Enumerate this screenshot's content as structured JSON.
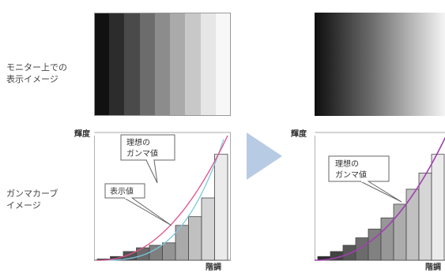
{
  "left": {
    "monitor_label_1": "モニター上での",
    "monitor_label_2": "表示イメージ",
    "y_axis_label": "輝度",
    "curve_label_1": "ガンマカーブ",
    "curve_label_2": "イメージ",
    "ideal_label_1": "理想の",
    "ideal_label_2": "ガンマ値",
    "display_label": "表示値",
    "x_axis_label": "階調",
    "bands": [
      "#111111",
      "#2c2c2c",
      "#4a4a4a",
      "#6c6c6c",
      "#8c8c8c",
      "#aaaaaa",
      "#c8c8c8",
      "#e6e6e6",
      "#f7f7f7"
    ],
    "bars": [
      0.01,
      0.03,
      0.07,
      0.1,
      0.12,
      0.14,
      0.28,
      0.35,
      0.5,
      0.85
    ]
  },
  "right": {
    "y_axis_label": "輝度",
    "ideal_label_1": "理想の",
    "ideal_label_2": "ガンマ値",
    "x_axis_label": "階調",
    "bars": [
      0.03,
      0.07,
      0.12,
      0.18,
      0.25,
      0.34,
      0.45,
      0.57,
      0.7,
      0.85
    ]
  },
  "colors": {
    "ideal_curve": "#e0508a",
    "display_curve": "#7ec8e0",
    "arrow": "#b8cbe4"
  }
}
